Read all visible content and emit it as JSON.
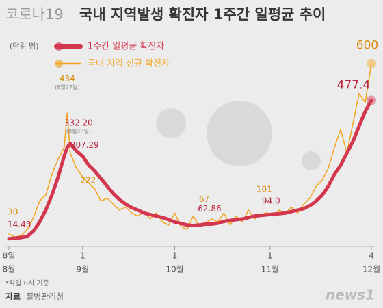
{
  "chart_data": {
    "type": "line",
    "title_prefix": "코로나19",
    "title": "국내 지역발생 확진자 1주간 일평균 추이",
    "unit": "(단위 명)",
    "x": [
      0,
      2,
      4,
      6,
      8,
      10,
      12,
      14,
      16,
      18,
      19,
      20,
      22,
      24,
      26,
      28,
      30,
      32,
      34,
      36,
      38,
      40,
      42,
      44,
      46,
      48,
      50,
      52,
      54,
      56,
      58,
      60,
      62,
      64,
      66,
      68,
      70,
      72,
      74,
      76,
      78,
      80,
      82,
      84,
      86,
      88,
      90,
      92,
      94,
      96,
      98,
      100,
      102,
      104,
      106,
      108,
      110,
      112,
      114,
      116,
      118
    ],
    "xlim": [
      0,
      118
    ],
    "xticks": [
      {
        "value": 0,
        "label": "8일"
      },
      {
        "value": 24,
        "label": "1"
      },
      {
        "value": 54,
        "label": "1"
      },
      {
        "value": 85,
        "label": "1"
      },
      {
        "value": 118,
        "label": "4"
      }
    ],
    "xtick_months": [
      "8월",
      "9월",
      "10월",
      "11월",
      "12월"
    ],
    "ylim": [
      0,
      620
    ],
    "series": [
      {
        "name": "1주간 일평균 확진자",
        "color": "#d2374e",
        "values": [
          14.43,
          16,
          18,
          22,
          40,
          70,
          110,
          160,
          220,
          290,
          320,
          332.2,
          307.29,
          290,
          260,
          240,
          215,
          190,
          165,
          145,
          130,
          118,
          110,
          100,
          95,
          90,
          85,
          78,
          70,
          65,
          60,
          58,
          60,
          62.86,
          63,
          66,
          72,
          75,
          78,
          80,
          85,
          90,
          92,
          94.0,
          96,
          98,
          100,
          105,
          110,
          115,
          125,
          140,
          160,
          190,
          230,
          260,
          300,
          340,
          390,
          440,
          477.4
        ]
      },
      {
        "name": "국내 지역 신규 확진자",
        "color": "#f2a31c",
        "values": [
          30,
          20,
          25,
          45,
          85,
          140,
          160,
          230,
          280,
          320,
          434,
          300,
          250,
          222,
          200,
          180,
          140,
          150,
          130,
          110,
          120,
          100,
          90,
          105,
          80,
          100,
          70,
          60,
          100,
          55,
          45,
          90,
          55,
          67,
          80,
          70,
          100,
          60,
          90,
          70,
          110,
          80,
          95,
          101,
          90,
          110,
          100,
          120,
          100,
          130,
          150,
          190,
          210,
          250,
          320,
          380,
          300,
          400,
          500,
          470,
          600
        ]
      }
    ],
    "annotations": [
      {
        "series": 1,
        "index": 0,
        "label": "30"
      },
      {
        "series": 0,
        "index": 0,
        "label": "14.43"
      },
      {
        "series": 1,
        "index": 10,
        "label": "434",
        "note": "(8월27일)"
      },
      {
        "series": 0,
        "index": 11,
        "label": "332.20",
        "note": "(8월28일)"
      },
      {
        "series": 0,
        "index": 12,
        "label": "307.29"
      },
      {
        "series": 1,
        "index": 13,
        "label": "222"
      },
      {
        "series": 1,
        "index": 33,
        "label": "67"
      },
      {
        "series": 0,
        "index": 33,
        "label": "62.86"
      },
      {
        "series": 1,
        "index": 43,
        "label": "101"
      },
      {
        "series": 0,
        "index": 43,
        "label": "94.0"
      },
      {
        "series": 0,
        "index": 60,
        "label": "477.4"
      },
      {
        "series": 1,
        "index": 60,
        "label": "600"
      }
    ],
    "footnote": "*각일 0시 기준",
    "source_label": "자료",
    "source": "질병관리청",
    "logo": "news1"
  }
}
